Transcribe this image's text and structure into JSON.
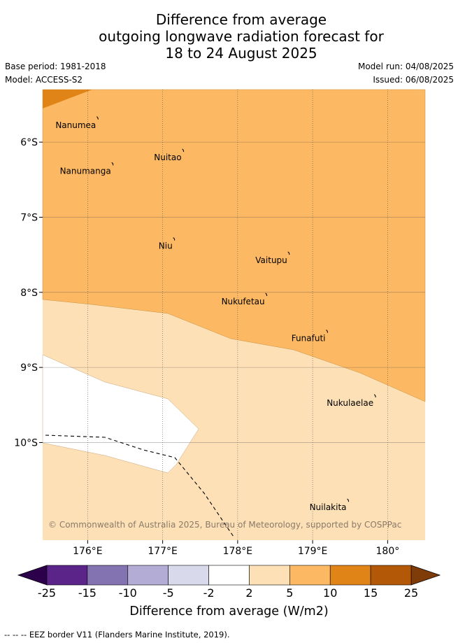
{
  "title": {
    "line1": "Difference from average",
    "line2": "outgoing longwave radiation forecast for",
    "line3": "18 to 24 August 2025"
  },
  "meta": {
    "base_period": "Base period: 1981-2018",
    "model": "Model: ACCESS-S2",
    "model_run": "Model run: 04/08/2025",
    "issued": "Issued: 06/08/2025"
  },
  "map": {
    "lon_range": [
      175.4,
      180.5
    ],
    "lat_range": [
      -11.3,
      -5.3
    ],
    "lon_ticks": [
      {
        "value": 176,
        "label": "176°E"
      },
      {
        "value": 177,
        "label": "177°E"
      },
      {
        "value": 178,
        "label": "178°E"
      },
      {
        "value": 179,
        "label": "179°E"
      },
      {
        "value": 180,
        "label": "180°"
      }
    ],
    "lat_ticks": [
      {
        "value": -6,
        "label": "6°S"
      },
      {
        "value": -7,
        "label": "7°S"
      },
      {
        "value": -8,
        "label": "8°S"
      },
      {
        "value": -9,
        "label": "9°S"
      },
      {
        "value": -10,
        "label": "10°S"
      }
    ],
    "islands": [
      {
        "name": "Nanumea",
        "lon": 176.13,
        "lat": -5.68
      },
      {
        "name": "Nuitao",
        "lon": 177.27,
        "lat": -6.11
      },
      {
        "name": "Nanumanga",
        "lon": 176.33,
        "lat": -6.29
      },
      {
        "name": "Niu",
        "lon": 177.15,
        "lat": -7.29
      },
      {
        "name": "Vaitupu",
        "lon": 178.68,
        "lat": -7.48
      },
      {
        "name": "Nukufetau",
        "lon": 178.38,
        "lat": -8.03
      },
      {
        "name": "Funafuti",
        "lon": 179.19,
        "lat": -8.52
      },
      {
        "name": "Nukulaelae",
        "lon": 179.83,
        "lat": -9.38
      },
      {
        "name": "Nuilakita",
        "lon": 179.47,
        "lat": -10.77
      }
    ],
    "copyright": "© Commonwealth of Australia 2025, Bureau of Meteorology, supported by COSPPac"
  },
  "colorbar": {
    "labels": [
      "-25",
      "-15",
      "-10",
      "-5",
      "-2",
      "2",
      "5",
      "10",
      "15",
      "25"
    ],
    "colors": [
      "#5a2489",
      "#8373b0",
      "#b3acd4",
      "#d9d9ec",
      "#ffffff",
      "#fde0b6",
      "#fcb862",
      "#e08418",
      "#b35806"
    ],
    "low_extend_color": "#2d004b",
    "high_extend_color": "#7f3b08",
    "label": "Difference from average (W/m2)"
  },
  "footnote": "--  --  -- EEZ border V11 (Flanders Marine Institute, 2019)."
}
